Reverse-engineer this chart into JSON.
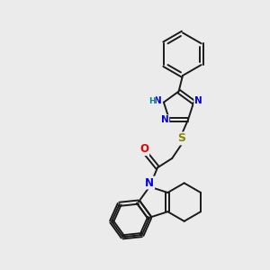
{
  "background_color": "#ebebeb",
  "bond_color": "#1a1a1a",
  "atom_colors": {
    "N": "#0000ee",
    "O": "#ee0000",
    "S": "#888800",
    "NH": "#008888",
    "C": "#1a1a1a"
  },
  "figsize": [
    3.0,
    3.0
  ],
  "dpi": 100,
  "lw": 1.4,
  "fs": 7.5
}
